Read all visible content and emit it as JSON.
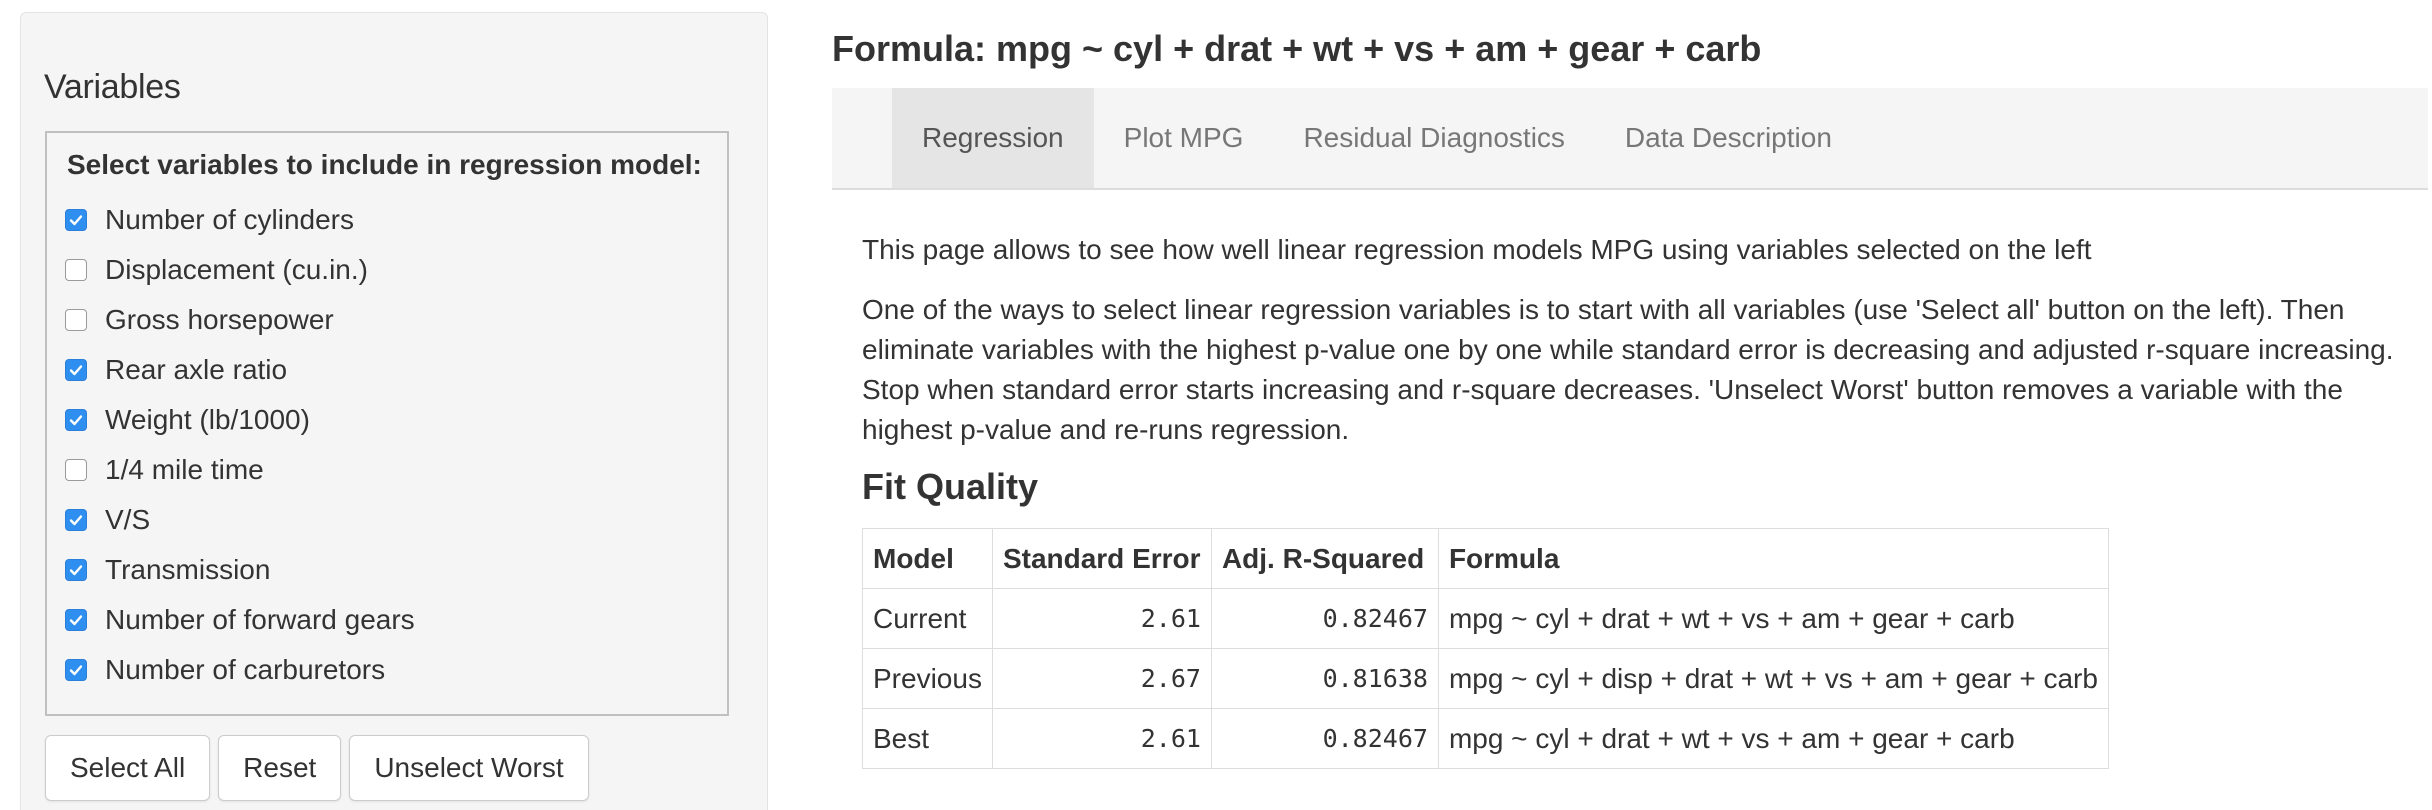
{
  "sidebar": {
    "title": "Variables",
    "legend": "Select variables to include in regression model:",
    "variables": [
      {
        "label": "Number of cylinders",
        "checked": true
      },
      {
        "label": "Displacement (cu.in.)",
        "checked": false
      },
      {
        "label": "Gross horsepower",
        "checked": false
      },
      {
        "label": "Rear axle ratio",
        "checked": true
      },
      {
        "label": "Weight (lb/1000)",
        "checked": true
      },
      {
        "label": "1/4 mile time",
        "checked": false
      },
      {
        "label": "V/S",
        "checked": true
      },
      {
        "label": "Transmission",
        "checked": true
      },
      {
        "label": "Number of forward gears",
        "checked": true
      },
      {
        "label": "Number of carburetors",
        "checked": true
      }
    ],
    "buttons": {
      "select_all": "Select All",
      "reset": "Reset",
      "unselect_worst": "Unselect Worst"
    }
  },
  "main": {
    "formula_title": "Formula: mpg ~ cyl + drat + wt + vs + am + gear + carb",
    "tabs": [
      {
        "label": "Regression",
        "active": true
      },
      {
        "label": "Plot MPG",
        "active": false
      },
      {
        "label": "Residual Diagnostics",
        "active": false
      },
      {
        "label": "Data Description",
        "active": false
      }
    ],
    "intro": "This page allows to see how well linear regression models MPG using variables selected on the left",
    "description": "One of the ways to select linear regression variables is to start with all variables (use 'Select all' button on the left). Then eliminate variables with the highest p-value one by one while standard error is decreasing and adjusted r-square increasing. Stop when standard error starts increasing and r-square decreases. 'Unselect Worst' button removes a variable with the highest p-value and re-runs regression.",
    "fit_quality": {
      "title": "Fit Quality",
      "headers": [
        "Model",
        "Standard Error",
        "Adj. R-Squared",
        "Formula"
      ],
      "rows": [
        [
          "Current",
          "2.61",
          "0.82467",
          "mpg ~ cyl + drat + wt + vs + am + gear + carb"
        ],
        [
          "Previous",
          "2.67",
          "0.81638",
          "mpg ~ cyl + disp + drat + wt + vs + am + gear + carb"
        ],
        [
          "Best",
          "2.61",
          "0.82467",
          "mpg ~ cyl + drat + wt + vs + am + gear + carb"
        ]
      ]
    }
  },
  "colors": {
    "checkbox_checked": "#2f8ff0",
    "sidebar_bg": "#f5f5f5",
    "tab_active_bg": "#e5e5e5",
    "tab_text": "#777777"
  }
}
